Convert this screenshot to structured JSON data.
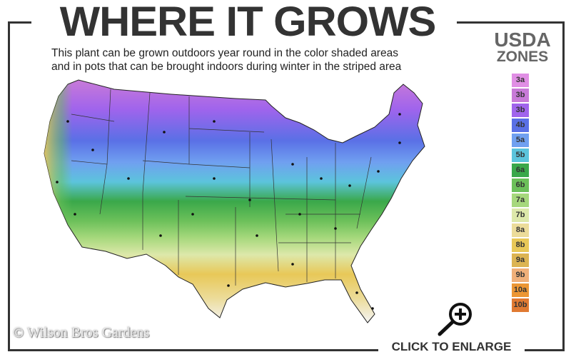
{
  "header": {
    "title": "WHERE IT GROWS",
    "subtitle_line1": "This plant can be grown outdoors year round in the color shaded areas",
    "subtitle_line2": "and in pots that can be brought indoors during winter in the striped area"
  },
  "legend": {
    "title_line1": "USDA",
    "title_line2": "ZONES",
    "zones": [
      {
        "label": "3a",
        "color": "#e08ee4"
      },
      {
        "label": "3b",
        "color": "#c87ad8"
      },
      {
        "label": "3b",
        "color": "#a064ec"
      },
      {
        "label": "4b",
        "color": "#5a70e6"
      },
      {
        "label": "5a",
        "color": "#70a0f0"
      },
      {
        "label": "5b",
        "color": "#5cc4dc"
      },
      {
        "label": "6a",
        "color": "#3aa84a"
      },
      {
        "label": "6b",
        "color": "#6cc05a"
      },
      {
        "label": "7a",
        "color": "#a6d87c"
      },
      {
        "label": "7b",
        "color": "#dde8aa"
      },
      {
        "label": "8a",
        "color": "#ecdc9a"
      },
      {
        "label": "8b",
        "color": "#e8c858"
      },
      {
        "label": "9a",
        "color": "#dcb452"
      },
      {
        "label": "9b",
        "color": "#f0b07a"
      },
      {
        "label": "10a",
        "color": "#ec9634"
      },
      {
        "label": "10b",
        "color": "#e07a32"
      }
    ]
  },
  "watermark": "© Wilson Bros Gardens",
  "footer": {
    "enlarge_label": "CLICK TO ENLARGE",
    "enlarge_icon": "zoom-in-magnifier"
  }
}
